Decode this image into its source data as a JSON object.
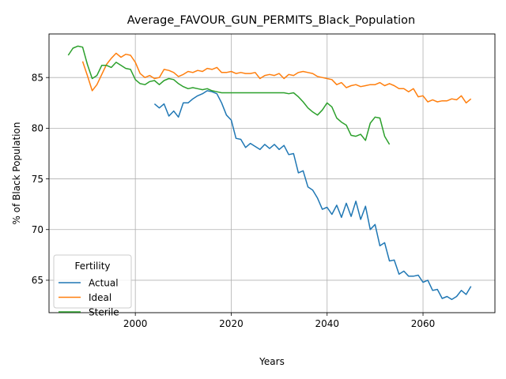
{
  "chart_data": {
    "type": "line",
    "title": "Average_FAVOUR_GUN_PERMITS_Black_Population",
    "xlabel": "Years",
    "ylabel": "% of Black Population",
    "xlim": [
      1982,
      2075
    ],
    "ylim": [
      61.8,
      89.3
    ],
    "xticks": [
      2000,
      2020,
      2040,
      2060
    ],
    "yticks": [
      65,
      70,
      75,
      80,
      85
    ],
    "grid": true,
    "legend": {
      "title": "Fertility",
      "placement": "lower-left"
    },
    "series": [
      {
        "name": "Actual",
        "color": "#1f77b4",
        "x": [
          2004,
          2005,
          2006,
          2007,
          2008,
          2009,
          2010,
          2011,
          2012,
          2013,
          2014,
          2015,
          2016,
          2017,
          2018,
          2019,
          2020,
          2021,
          2022,
          2023,
          2024,
          2025,
          2026,
          2027,
          2028,
          2029,
          2030,
          2031,
          2032,
          2033,
          2034,
          2035,
          2036,
          2037,
          2038,
          2039,
          2040,
          2041,
          2042,
          2043,
          2044,
          2045,
          2046,
          2047,
          2048,
          2049,
          2050,
          2051,
          2052,
          2053,
          2054,
          2055,
          2056,
          2057,
          2058,
          2059,
          2060,
          2061,
          2062,
          2063,
          2064,
          2065,
          2066,
          2067,
          2068,
          2069,
          2070
        ],
        "y": [
          82.4,
          82.0,
          82.4,
          81.2,
          81.7,
          81.1,
          82.5,
          82.5,
          82.9,
          83.2,
          83.4,
          83.7,
          83.6,
          83.4,
          82.5,
          81.3,
          80.8,
          79.0,
          78.9,
          78.1,
          78.5,
          78.2,
          77.9,
          78.4,
          78.0,
          78.4,
          77.9,
          78.3,
          77.4,
          77.5,
          75.6,
          75.8,
          74.2,
          73.9,
          73.1,
          72.0,
          72.2,
          71.5,
          72.4,
          71.2,
          72.6,
          71.3,
          72.8,
          71.0,
          72.3,
          70.0,
          70.5,
          68.4,
          68.7,
          66.9,
          67.0,
          65.6,
          65.9,
          65.4,
          65.4,
          65.5,
          64.8,
          65.0,
          64.0,
          64.1,
          63.2,
          63.4,
          63.1,
          63.4,
          64.0,
          63.6,
          64.4
        ]
      },
      {
        "name": "Ideal",
        "color": "#ff7f0e",
        "x": [
          1989,
          1990,
          1991,
          1992,
          1993,
          1994,
          1995,
          1996,
          1997,
          1998,
          1999,
          2000,
          2001,
          2002,
          2003,
          2004,
          2005,
          2006,
          2007,
          2008,
          2009,
          2010,
          2011,
          2012,
          2013,
          2014,
          2015,
          2016,
          2017,
          2018,
          2019,
          2020,
          2021,
          2022,
          2023,
          2024,
          2025,
          2026,
          2027,
          2028,
          2029,
          2030,
          2031,
          2032,
          2033,
          2034,
          2035,
          2036,
          2037,
          2038,
          2039,
          2040,
          2041,
          2042,
          2043,
          2044,
          2045,
          2046,
          2047,
          2048,
          2049,
          2050,
          2051,
          2052,
          2053,
          2054,
          2055,
          2056,
          2057,
          2058,
          2059,
          2060,
          2061,
          2062,
          2063,
          2064,
          2065,
          2066,
          2067,
          2068,
          2069,
          2070
        ],
        "y": [
          86.6,
          85.2,
          83.7,
          84.3,
          85.3,
          86.3,
          86.9,
          87.4,
          87.0,
          87.3,
          87.2,
          86.5,
          85.4,
          85.0,
          85.2,
          84.9,
          85.0,
          85.8,
          85.7,
          85.5,
          85.1,
          85.3,
          85.6,
          85.5,
          85.7,
          85.6,
          85.9,
          85.8,
          86.0,
          85.5,
          85.5,
          85.6,
          85.4,
          85.5,
          85.4,
          85.4,
          85.5,
          84.9,
          85.2,
          85.3,
          85.2,
          85.4,
          84.9,
          85.3,
          85.2,
          85.5,
          85.6,
          85.5,
          85.4,
          85.1,
          85.0,
          84.9,
          84.8,
          84.3,
          84.5,
          84.0,
          84.2,
          84.3,
          84.1,
          84.2,
          84.3,
          84.3,
          84.5,
          84.2,
          84.4,
          84.2,
          83.9,
          83.9,
          83.6,
          83.9,
          83.1,
          83.2,
          82.6,
          82.8,
          82.6,
          82.7,
          82.7,
          82.9,
          82.8,
          83.2,
          82.5,
          82.9
        ]
      },
      {
        "name": "Sterile",
        "color": "#2ca02c",
        "x": [
          1986,
          1987,
          1988,
          1989,
          1990,
          1991,
          1992,
          1993,
          1994,
          1995,
          1996,
          1997,
          1998,
          1999,
          2000,
          2001,
          2002,
          2003,
          2004,
          2005,
          2006,
          2007,
          2008,
          2009,
          2010,
          2011,
          2012,
          2013,
          2014,
          2015,
          2016,
          2017,
          2018,
          2019,
          2020,
          2021,
          2022,
          2023,
          2024,
          2025,
          2026,
          2027,
          2028,
          2029,
          2030,
          2031,
          2032,
          2033,
          2034,
          2035,
          2036,
          2037,
          2038,
          2039,
          2040,
          2041,
          2042,
          2043,
          2044,
          2045,
          2046,
          2047,
          2048,
          2049,
          2050,
          2051,
          2052,
          2053
        ],
        "y": [
          87.2,
          87.9,
          88.1,
          88.0,
          86.3,
          84.9,
          85.2,
          86.2,
          86.2,
          86.0,
          86.5,
          86.2,
          85.9,
          85.8,
          84.8,
          84.4,
          84.3,
          84.6,
          84.7,
          84.3,
          84.7,
          84.9,
          84.8,
          84.4,
          84.1,
          83.9,
          84.0,
          83.9,
          83.8,
          83.9,
          83.7,
          83.6,
          83.5,
          83.5,
          83.5,
          83.5,
          83.5,
          83.5,
          83.5,
          83.5,
          83.5,
          83.5,
          83.5,
          83.5,
          83.5,
          83.5,
          83.4,
          83.5,
          83.1,
          82.6,
          82.0,
          81.6,
          81.3,
          81.8,
          82.5,
          82.1,
          81.0,
          80.6,
          80.3,
          79.3,
          79.2,
          79.4,
          78.8,
          80.5,
          81.1,
          81.0,
          79.2,
          78.4
        ]
      }
    ]
  }
}
